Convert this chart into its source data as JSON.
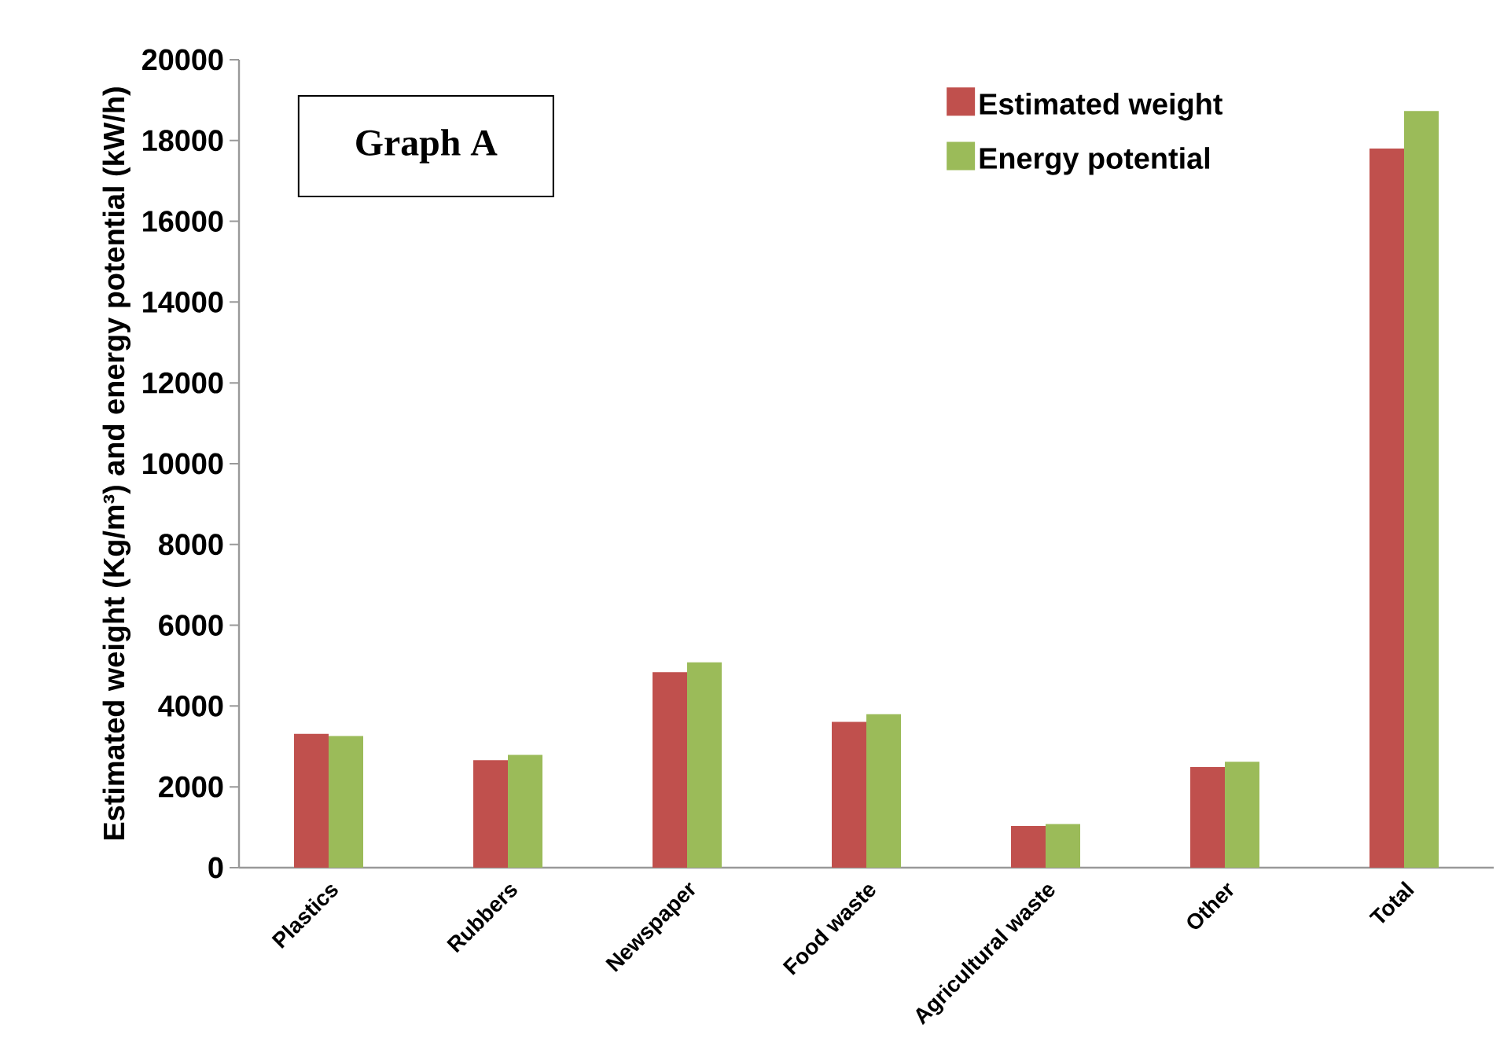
{
  "chart_data": {
    "type": "bar",
    "ylabel": "Estimated weight (Kg/m³) and energy potential (kW/h)",
    "categories": [
      "Plastics",
      "Rubbers",
      "Newspaper",
      "Food waste",
      "Agricultural waste",
      "Other",
      "Total"
    ],
    "series": [
      {
        "name": "Estimated weight",
        "color": "#c0504d",
        "values": [
          3310,
          2660,
          4840,
          3610,
          1030,
          2490,
          17800
        ]
      },
      {
        "name": "Energy potential",
        "color": "#9bbb59",
        "values": [
          3260,
          2790,
          5080,
          3800,
          1080,
          2620,
          18730
        ]
      }
    ],
    "ylim": [
      0,
      20000
    ],
    "yticks": [
      0,
      2000,
      4000,
      6000,
      8000,
      10000,
      12000,
      14000,
      16000,
      18000,
      20000
    ],
    "legend": "top right",
    "grid": false,
    "annotations": [
      "Graph A"
    ]
  }
}
